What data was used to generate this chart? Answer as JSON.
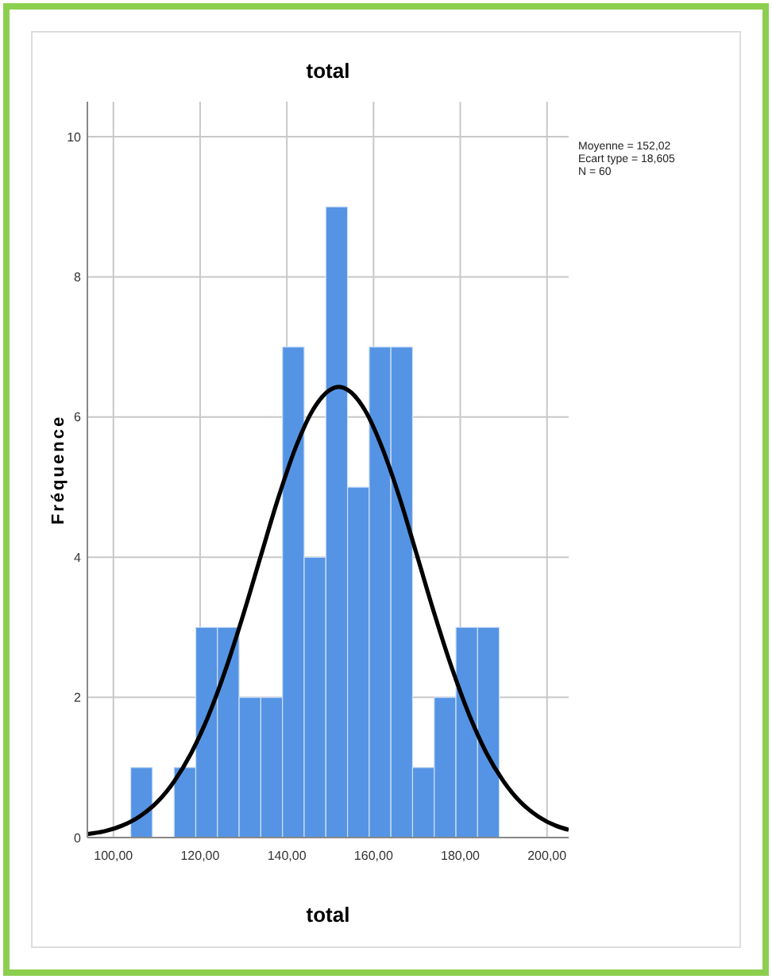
{
  "chart_data": {
    "type": "histogram",
    "title": "total",
    "xlabel": "total",
    "ylabel": "Fréquence",
    "bins": [
      104,
      109,
      114,
      119,
      124,
      129,
      134,
      139,
      144,
      149,
      154,
      159,
      164,
      169,
      174,
      179,
      184,
      189
    ],
    "values": [
      1,
      0,
      1,
      3,
      3,
      2,
      2,
      7,
      4,
      9,
      5,
      7,
      7,
      1,
      2,
      3,
      3
    ],
    "color": "#5594e4",
    "series": [
      {
        "type": "line",
        "color": "#000000",
        "x": [
          94,
          98,
          102,
          106,
          110,
          114,
          118,
          122,
          126,
          130,
          134,
          138,
          142,
          146,
          150,
          152,
          154,
          158,
          162,
          166,
          170,
          174,
          178,
          182,
          186,
          190,
          194,
          198,
          202,
          205
        ],
        "values": [
          0.05,
          0.09,
          0.17,
          0.3,
          0.5,
          0.8,
          1.21,
          1.75,
          2.42,
          3.19,
          4.02,
          4.84,
          5.56,
          6.1,
          6.39,
          6.43,
          6.39,
          6.1,
          5.56,
          4.85,
          4.03,
          3.2,
          2.43,
          1.76,
          1.21,
          0.8,
          0.5,
          0.3,
          0.17,
          0.11
        ]
      }
    ],
    "xlim": [
      94,
      205
    ],
    "ylim": [
      0,
      10.5
    ],
    "xticks": [
      {
        "value": 100,
        "label": "100,00"
      },
      {
        "value": 120,
        "label": "120,00"
      },
      {
        "value": 140,
        "label": "140,00"
      },
      {
        "value": 160,
        "label": "160,00"
      },
      {
        "value": 180,
        "label": "180,00"
      },
      {
        "value": 200,
        "label": "200,00"
      }
    ],
    "yticks": [
      0,
      2,
      4,
      6,
      8,
      10
    ],
    "grid": true,
    "marker": "none",
    "line_style": "solid",
    "annotations": [
      "Moyenne = 152,02",
      "Ecart type = 18,605",
      "N = 60"
    ]
  }
}
